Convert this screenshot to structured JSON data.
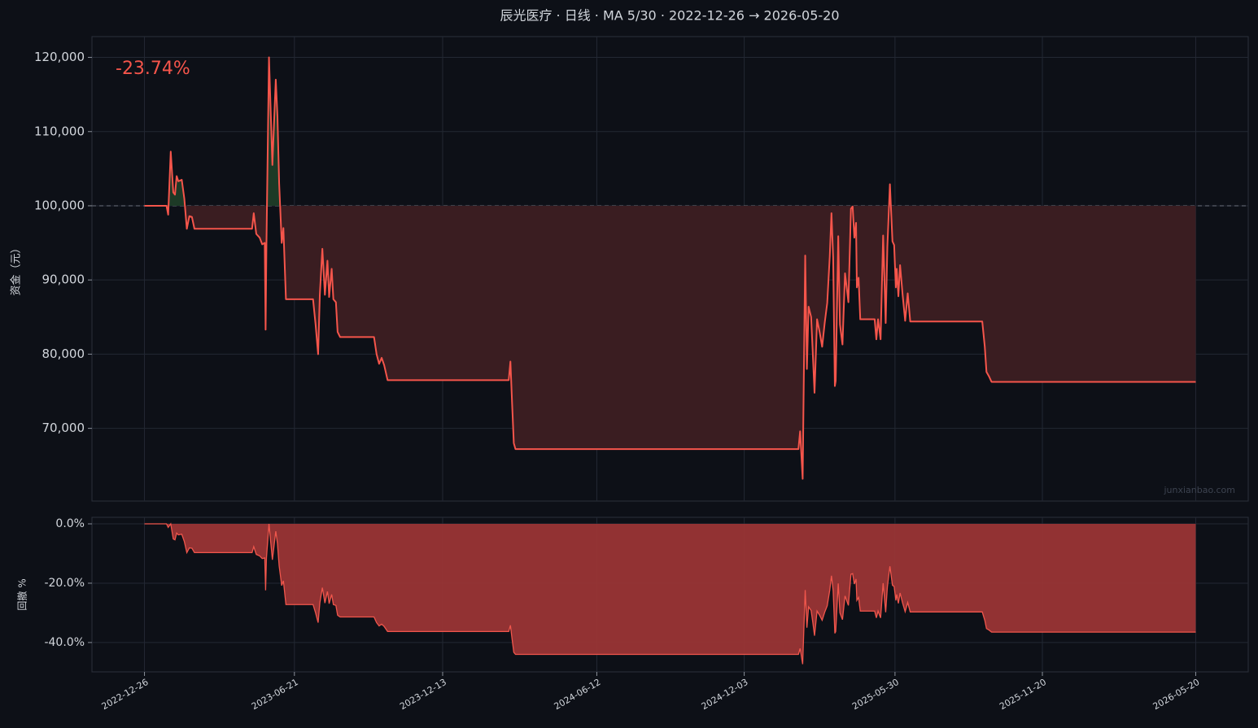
{
  "chart_data": [
    {
      "type": "line",
      "title": "辰光医疗 · 日线 · MA 5/30 · 2022-12-26 → 2026-05-20",
      "ylabel": "资金（元）",
      "annotation": "-23.74%",
      "watermark": "junxianbao.com",
      "baseline": 100000,
      "grid": true,
      "xlim": [
        "2022-10-25",
        "2026-07-21"
      ],
      "ylim": [
        60200,
        122800
      ],
      "yticks": [
        {
          "value": 70000,
          "label": "70,000"
        },
        {
          "value": 80000,
          "label": "80,000"
        },
        {
          "value": 90000,
          "label": "90,000"
        },
        {
          "value": 100000,
          "label": "100,000"
        },
        {
          "value": 110000,
          "label": "110,000"
        },
        {
          "value": 120000,
          "label": "120,000"
        }
      ],
      "x": [
        "2022-12-26",
        "2023-01-21",
        "2023-01-23",
        "2023-01-26",
        "2023-01-29",
        "2023-01-31",
        "2023-02-02",
        "2023-02-04",
        "2023-02-08",
        "2023-02-11",
        "2023-02-14",
        "2023-02-17",
        "2023-02-20",
        "2023-02-23",
        "2023-05-02",
        "2023-05-04",
        "2023-05-07",
        "2023-05-11",
        "2023-05-14",
        "2023-05-17",
        "2023-05-18",
        "2023-05-19",
        "2023-05-22",
        "2023-05-26",
        "2023-05-30",
        "2023-06-01",
        "2023-06-03",
        "2023-06-06",
        "2023-06-08",
        "2023-06-11",
        "2023-07-13",
        "2023-07-16",
        "2023-07-19",
        "2023-07-21",
        "2023-07-24",
        "2023-07-27",
        "2023-07-30",
        "2023-08-01",
        "2023-08-04",
        "2023-08-06",
        "2023-08-09",
        "2023-08-11",
        "2023-08-14",
        "2023-09-23",
        "2023-09-26",
        "2023-09-29",
        "2023-10-02",
        "2023-10-05",
        "2023-10-09",
        "2024-02-29",
        "2024-03-02",
        "2024-03-04",
        "2024-03-06",
        "2024-03-08",
        "2025-02-05",
        "2025-02-07",
        "2025-02-10",
        "2025-02-13",
        "2025-02-15",
        "2025-02-17",
        "2025-02-20",
        "2025-02-22",
        "2025-02-24",
        "2025-02-27",
        "2025-03-02",
        "2025-03-05",
        "2025-03-08",
        "2025-03-11",
        "2025-03-14",
        "2025-03-16",
        "2025-03-18",
        "2025-03-20",
        "2025-03-21",
        "2025-03-24",
        "2025-03-26",
        "2025-03-29",
        "2025-04-01",
        "2025-04-05",
        "2025-04-08",
        "2025-04-10",
        "2025-04-12",
        "2025-04-14",
        "2025-04-15",
        "2025-04-17",
        "2025-04-19",
        "2025-05-06",
        "2025-05-08",
        "2025-05-10",
        "2025-05-13",
        "2025-05-16",
        "2025-05-19",
        "2025-05-21",
        "2025-05-24",
        "2025-05-27",
        "2025-05-29",
        "2025-05-31",
        "2025-06-01",
        "2025-06-03",
        "2025-06-05",
        "2025-06-08",
        "2025-06-11",
        "2025-06-14",
        "2025-06-17",
        "2025-09-10",
        "2025-09-13",
        "2025-09-15",
        "2025-09-18",
        "2025-09-21",
        "2026-05-20"
      ],
      "series": [
        {
          "color": "#f5554b",
          "up_color": "#1d3a26",
          "down_color": "#3a1d21",
          "values": [
            100000,
            100000,
            98800,
            107300,
            101800,
            101500,
            104000,
            103300,
            103500,
            101000,
            96900,
            98600,
            98500,
            96900,
            96900,
            99000,
            96200,
            95700,
            94800,
            95000,
            83300,
            95000,
            120000,
            105500,
            117000,
            112000,
            103000,
            95000,
            97000,
            87400,
            87400,
            84000,
            80000,
            88000,
            94200,
            88000,
            92600,
            87700,
            91500,
            87400,
            87000,
            83000,
            82300,
            82300,
            80000,
            78700,
            79500,
            78500,
            76500,
            76500,
            79000,
            73300,
            68000,
            67200,
            67200,
            69600,
            63200,
            93300,
            78000,
            86400,
            85000,
            80000,
            74800,
            84700,
            83000,
            81000,
            84200,
            86900,
            93200,
            99000,
            93000,
            75700,
            76400,
            95900,
            84000,
            81300,
            90900,
            87000,
            99600,
            99900,
            95700,
            97700,
            89000,
            90300,
            84700,
            84700,
            82000,
            84700,
            82000,
            96000,
            84200,
            94500,
            102900,
            95200,
            94700,
            89000,
            91500,
            87800,
            92000,
            88000,
            84500,
            88200,
            84400,
            84400,
            81000,
            77600,
            77000,
            76260,
            76260
          ]
        }
      ]
    },
    {
      "type": "area",
      "ylabel": "回撤 %",
      "grid": true,
      "xlim": [
        "2022-10-25",
        "2026-07-21"
      ],
      "ylim": [
        -49.9,
        2.2
      ],
      "xticks": [
        "2022-12-26",
        "2023-06-21",
        "2023-12-13",
        "2024-06-12",
        "2024-12-03",
        "2025-05-30",
        "2025-11-20",
        "2026-05-20"
      ],
      "yticks": [
        {
          "value": -40,
          "label": "-40.0%"
        },
        {
          "value": -20,
          "label": "-20.0%"
        },
        {
          "value": 0,
          "label": "0.0%"
        }
      ],
      "x": [
        "2022-12-26",
        "2023-01-21",
        "2023-01-23",
        "2023-01-26",
        "2023-01-29",
        "2023-01-31",
        "2023-02-02",
        "2023-02-04",
        "2023-02-08",
        "2023-02-11",
        "2023-02-14",
        "2023-02-17",
        "2023-02-20",
        "2023-02-23",
        "2023-05-02",
        "2023-05-04",
        "2023-05-07",
        "2023-05-11",
        "2023-05-14",
        "2023-05-17",
        "2023-05-18",
        "2023-05-19",
        "2023-05-22",
        "2023-05-26",
        "2023-05-30",
        "2023-06-01",
        "2023-06-03",
        "2023-06-06",
        "2023-06-08",
        "2023-06-11",
        "2023-07-13",
        "2023-07-16",
        "2023-07-19",
        "2023-07-21",
        "2023-07-24",
        "2023-07-27",
        "2023-07-30",
        "2023-08-01",
        "2023-08-04",
        "2023-08-06",
        "2023-08-09",
        "2023-08-11",
        "2023-08-14",
        "2023-09-23",
        "2023-09-26",
        "2023-09-29",
        "2023-10-02",
        "2023-10-05",
        "2023-10-09",
        "2024-02-29",
        "2024-03-02",
        "2024-03-04",
        "2024-03-06",
        "2024-03-08",
        "2025-02-05",
        "2025-02-07",
        "2025-02-10",
        "2025-02-13",
        "2025-02-15",
        "2025-02-17",
        "2025-02-20",
        "2025-02-22",
        "2025-02-24",
        "2025-02-27",
        "2025-03-02",
        "2025-03-05",
        "2025-03-08",
        "2025-03-11",
        "2025-03-14",
        "2025-03-16",
        "2025-03-18",
        "2025-03-20",
        "2025-03-21",
        "2025-03-24",
        "2025-03-26",
        "2025-03-29",
        "2025-04-01",
        "2025-04-05",
        "2025-04-08",
        "2025-04-10",
        "2025-04-12",
        "2025-04-14",
        "2025-04-15",
        "2025-04-17",
        "2025-04-19",
        "2025-05-06",
        "2025-05-08",
        "2025-05-10",
        "2025-05-13",
        "2025-05-16",
        "2025-05-19",
        "2025-05-21",
        "2025-05-24",
        "2025-05-27",
        "2025-05-29",
        "2025-05-31",
        "2025-06-01",
        "2025-06-03",
        "2025-06-05",
        "2025-06-08",
        "2025-06-11",
        "2025-06-14",
        "2025-06-17",
        "2025-09-10",
        "2025-09-13",
        "2025-09-15",
        "2025-09-18",
        "2025-09-21",
        "2026-05-20"
      ],
      "series": [
        {
          "color": "#f0564c",
          "fill": "#9a3535",
          "values": [
            0,
            0,
            -1.2,
            0,
            -5.1,
            -5.4,
            -3.1,
            -3.7,
            -3.5,
            -5.9,
            -9.7,
            -8.1,
            -8.2,
            -9.7,
            -9.7,
            -7.7,
            -10.3,
            -10.8,
            -11.7,
            -11.5,
            -22.4,
            -11.5,
            0,
            -12.1,
            -2.5,
            -6.7,
            -14.2,
            -20.8,
            -19.2,
            -27.2,
            -27.2,
            -30.0,
            -33.3,
            -26.7,
            -21.5,
            -26.7,
            -22.8,
            -26.9,
            -23.8,
            -27.2,
            -27.5,
            -30.8,
            -31.4,
            -31.4,
            -33.3,
            -34.4,
            -33.8,
            -34.6,
            -36.3,
            -36.3,
            -34.2,
            -38.9,
            -43.3,
            -44.0,
            -44.0,
            -42.0,
            -47.3,
            -22.3,
            -35.0,
            -28.0,
            -29.2,
            -33.3,
            -37.7,
            -29.4,
            -30.8,
            -32.5,
            -29.8,
            -27.6,
            -22.3,
            -17.5,
            -22.5,
            -36.9,
            -36.3,
            -20.1,
            -30.0,
            -32.3,
            -24.3,
            -27.5,
            -17.0,
            -16.8,
            -20.3,
            -18.6,
            -25.8,
            -24.8,
            -29.4,
            -29.4,
            -31.7,
            -29.4,
            -31.7,
            -20.0,
            -29.8,
            -21.3,
            -14.3,
            -20.7,
            -21.1,
            -25.8,
            -23.8,
            -26.8,
            -23.3,
            -26.7,
            -29.6,
            -26.5,
            -29.7,
            -29.7,
            -32.5,
            -35.3,
            -35.8,
            -36.5,
            -36.5
          ]
        }
      ]
    }
  ]
}
